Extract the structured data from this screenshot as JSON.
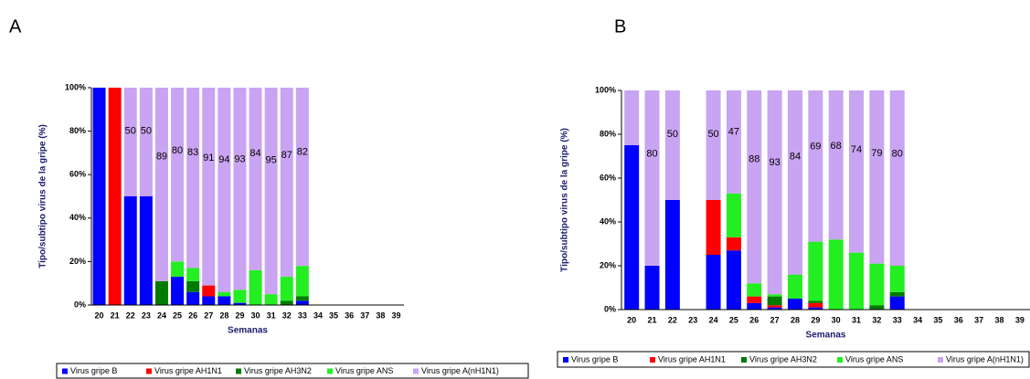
{
  "chart_data": [
    {
      "type": "stacked_bar",
      "panel": "A",
      "y_label": "Tipo/subtipo virus de la gripe (%)",
      "x_label": "Semanas",
      "categories": [
        "20",
        "21",
        "22",
        "23",
        "24",
        "25",
        "26",
        "27",
        "28",
        "29",
        "30",
        "31",
        "32",
        "33",
        "34",
        "35",
        "36",
        "37",
        "38",
        "39"
      ],
      "ylim": [
        0,
        100
      ],
      "yticks": [
        {
          "value": 0,
          "label": "0%"
        },
        {
          "value": 20,
          "label": "20%"
        },
        {
          "value": 40,
          "label": "40%"
        },
        {
          "value": 60,
          "label": "60%"
        },
        {
          "value": 80,
          "label": "80%"
        },
        {
          "value": 100,
          "label": "100%"
        }
      ],
      "series": [
        {
          "name": "Virus gripe B",
          "color": "#0000ff",
          "values": [
            100,
            0,
            50,
            50,
            0,
            13,
            6,
            4,
            4,
            1,
            0,
            0,
            0,
            2,
            null,
            null,
            null,
            null,
            null,
            null
          ]
        },
        {
          "name": "Virus gripe AH1N1",
          "color": "#ff0000",
          "values": [
            0,
            100,
            0,
            0,
            0,
            0,
            0,
            5,
            0,
            0,
            0,
            0,
            0,
            0,
            null,
            null,
            null,
            null,
            null,
            null
          ]
        },
        {
          "name": "Virus gripe AH3N2",
          "color": "#007a00",
          "values": [
            0,
            0,
            0,
            0,
            11,
            0,
            5,
            0,
            0,
            0,
            0,
            0,
            2,
            2,
            null,
            null,
            null,
            null,
            null,
            null
          ]
        },
        {
          "name": "Virus gripe ANS",
          "color": "#22ee22",
          "values": [
            0,
            0,
            0,
            0,
            0,
            7,
            6,
            0,
            2,
            6,
            16,
            5,
            11,
            14,
            null,
            null,
            null,
            null,
            null,
            null
          ]
        },
        {
          "name": "Virus gripe A(nH1N1)",
          "color": "#c9a4f2",
          "values": [
            0,
            0,
            50,
            50,
            89,
            80,
            83,
            91,
            94,
            93,
            84,
            95,
            87,
            82,
            null,
            null,
            null,
            null,
            null,
            null
          ],
          "value_labels": [
            null,
            null,
            "50",
            "50",
            "89",
            "80",
            "83",
            "91",
            "94",
            "93",
            "84",
            "95",
            "87",
            "82",
            null,
            null,
            null,
            null,
            null,
            null
          ]
        }
      ]
    },
    {
      "type": "stacked_bar",
      "panel": "B",
      "y_label": "Tipo/subtipo virus de la gripe (%)",
      "x_label": "Semanas",
      "categories": [
        "20",
        "21",
        "22",
        "23",
        "24",
        "25",
        "26",
        "27",
        "28",
        "29",
        "30",
        "31",
        "32",
        "33",
        "34",
        "35",
        "36",
        "37",
        "38",
        "39"
      ],
      "ylim": [
        0,
        100
      ],
      "yticks": [
        {
          "value": 0,
          "label": "0%"
        },
        {
          "value": 20,
          "label": "20%"
        },
        {
          "value": 40,
          "label": "40%"
        },
        {
          "value": 60,
          "label": "60%"
        },
        {
          "value": 80,
          "label": "80%"
        },
        {
          "value": 100,
          "label": "100%"
        }
      ],
      "series": [
        {
          "name": "Virus gripe B",
          "color": "#0000ff",
          "values": [
            75,
            20,
            50,
            null,
            25,
            27,
            3,
            1,
            5,
            1,
            0,
            0,
            0,
            6,
            null,
            null,
            null,
            null,
            null,
            null
          ]
        },
        {
          "name": "Virus gripe AH1N1",
          "color": "#ff0000",
          "values": [
            0,
            0,
            0,
            null,
            25,
            6,
            3,
            1,
            0,
            2,
            0,
            0,
            0,
            0,
            null,
            null,
            null,
            null,
            null,
            null
          ]
        },
        {
          "name": "Virus gripe AH3N2",
          "color": "#007a00",
          "values": [
            0,
            0,
            0,
            null,
            0,
            0,
            0,
            4,
            0,
            1,
            0,
            0,
            2,
            2,
            null,
            null,
            null,
            null,
            null,
            null
          ]
        },
        {
          "name": "Virus gripe ANS",
          "color": "#22ee22",
          "values": [
            0,
            0,
            0,
            null,
            0,
            20,
            6,
            1,
            11,
            27,
            32,
            26,
            19,
            12,
            null,
            null,
            null,
            null,
            null,
            null
          ]
        },
        {
          "name": "Virus gripe A(nH1N1)",
          "color": "#c9a4f2",
          "values": [
            25,
            80,
            50,
            null,
            50,
            47,
            88,
            93,
            84,
            69,
            68,
            74,
            79,
            80,
            null,
            null,
            null,
            null,
            null,
            null
          ],
          "value_labels": [
            null,
            "80",
            "50",
            null,
            "50",
            "47",
            "88",
            "93",
            "84",
            "69",
            "68",
            "74",
            "79",
            "80",
            null,
            null,
            null,
            null,
            null,
            null
          ]
        }
      ]
    }
  ]
}
